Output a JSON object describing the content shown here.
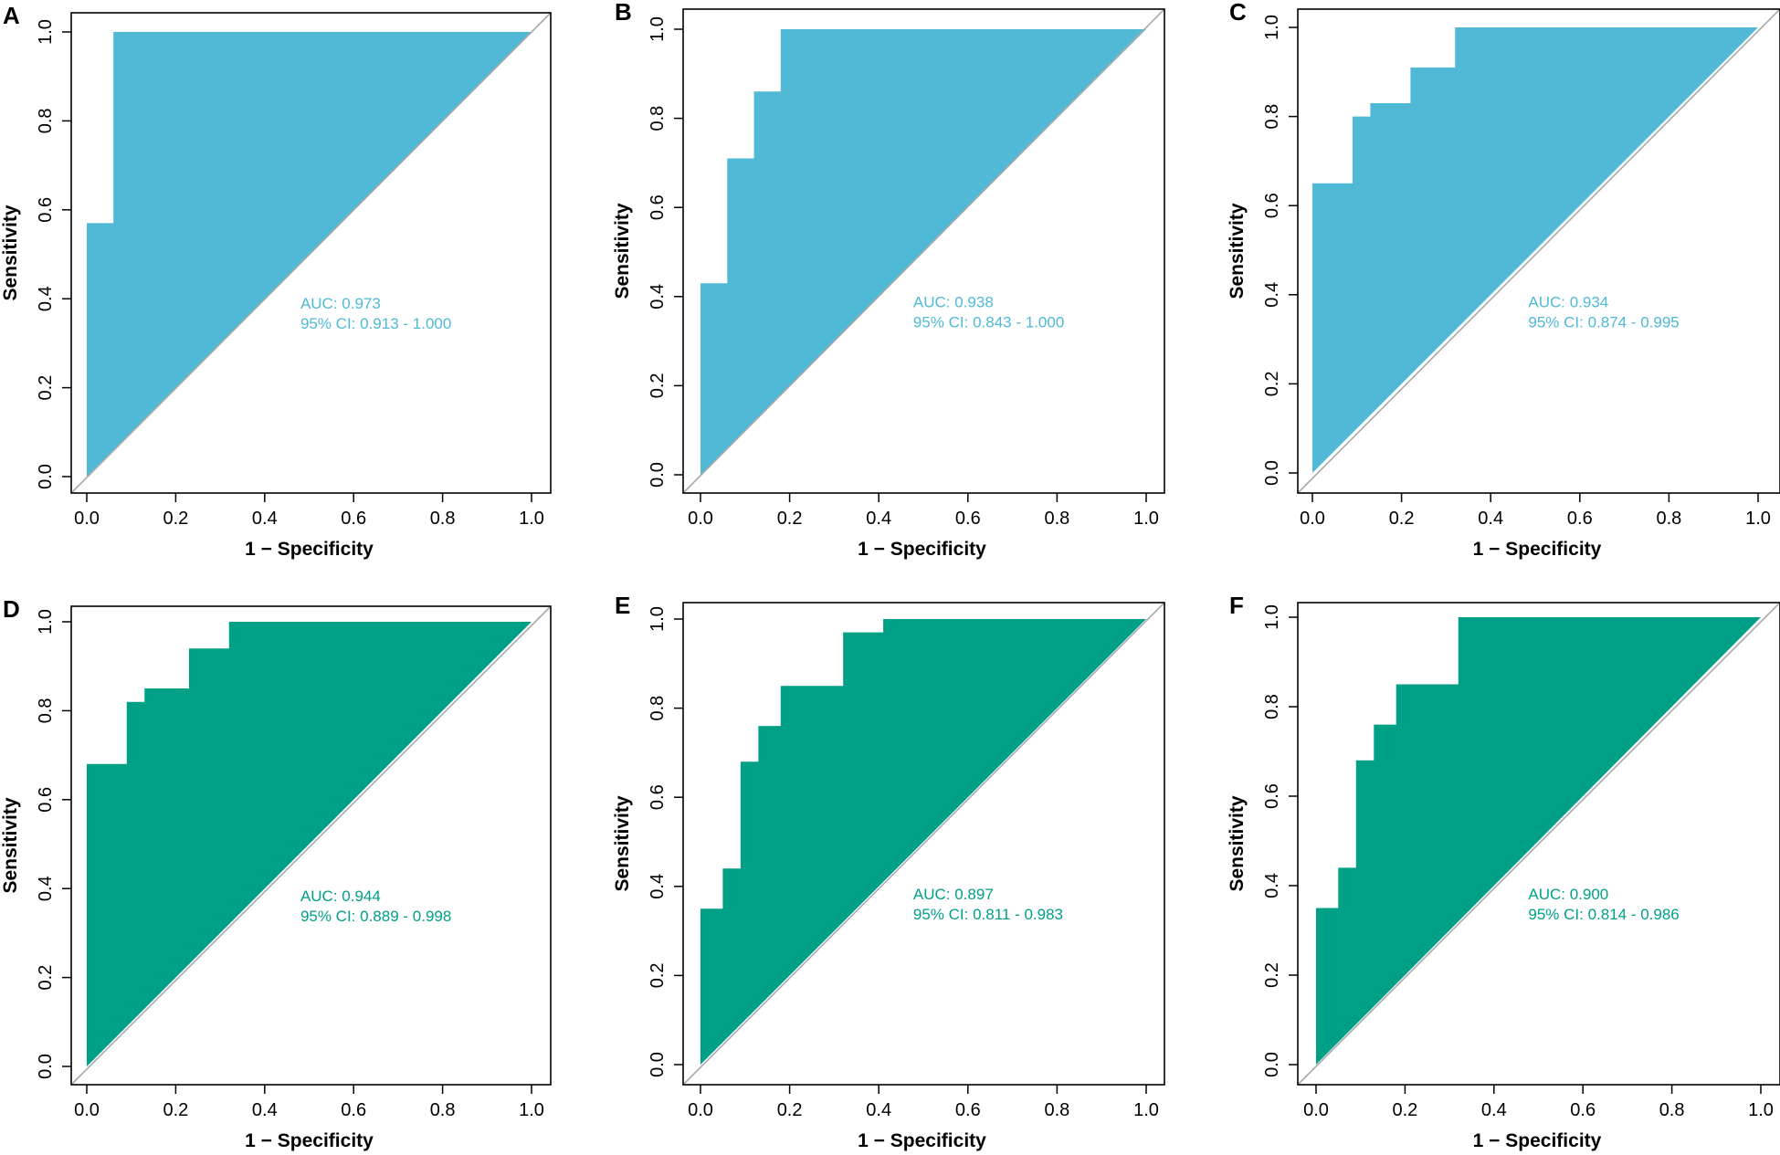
{
  "figure": {
    "width": 1949,
    "height": 1265
  },
  "chart_data": [
    {
      "type": "area",
      "panel": "A",
      "xlabel": "1 − Specificity",
      "ylabel": "Sensitivity",
      "xlim": [
        0,
        1
      ],
      "ylim": [
        0,
        1
      ],
      "xticks": [
        "0.0",
        "0.2",
        "0.4",
        "0.6",
        "0.8",
        "1.0"
      ],
      "yticks": [
        "0.0",
        "0.2",
        "0.4",
        "0.6",
        "0.8",
        "1.0"
      ],
      "color": "#4fb9d6",
      "auc_text": "AUC: 0.973",
      "ci_text": "95% CI: 0.913 - 1.000",
      "roc": [
        [
          0,
          0
        ],
        [
          0,
          0.57
        ],
        [
          0.06,
          0.57
        ],
        [
          0.06,
          1
        ],
        [
          1,
          1
        ]
      ]
    },
    {
      "type": "area",
      "panel": "B",
      "xlabel": "1 − Specificity",
      "ylabel": "Sensitivity",
      "xlim": [
        0,
        1
      ],
      "ylim": [
        0,
        1
      ],
      "xticks": [
        "0.0",
        "0.2",
        "0.4",
        "0.6",
        "0.8",
        "1.0"
      ],
      "yticks": [
        "0.0",
        "0.2",
        "0.4",
        "0.6",
        "0.8",
        "1.0"
      ],
      "color": "#4fb9d6",
      "auc_text": "AUC: 0.938",
      "ci_text": "95% CI: 0.843 - 1.000",
      "roc": [
        [
          0,
          0
        ],
        [
          0,
          0.43
        ],
        [
          0.06,
          0.43
        ],
        [
          0.06,
          0.71
        ],
        [
          0.12,
          0.71
        ],
        [
          0.12,
          0.86
        ],
        [
          0.18,
          0.86
        ],
        [
          0.18,
          1
        ],
        [
          1,
          1
        ]
      ]
    },
    {
      "type": "area",
      "panel": "C",
      "xlabel": "1 − Specificity",
      "ylabel": "Sensitivity",
      "xlim": [
        0,
        1
      ],
      "ylim": [
        0,
        1
      ],
      "xticks": [
        "0.0",
        "0.2",
        "0.4",
        "0.6",
        "0.8",
        "1.0"
      ],
      "yticks": [
        "0.0",
        "0.2",
        "0.4",
        "0.6",
        "0.8",
        "1.0"
      ],
      "color": "#4fb9d6",
      "auc_text": "AUC: 0.934",
      "ci_text": "95% CI: 0.874 - 0.995",
      "roc": [
        [
          0,
          0
        ],
        [
          0,
          0.65
        ],
        [
          0.09,
          0.65
        ],
        [
          0.09,
          0.8
        ],
        [
          0.13,
          0.8
        ],
        [
          0.13,
          0.83
        ],
        [
          0.22,
          0.83
        ],
        [
          0.22,
          0.91
        ],
        [
          0.32,
          0.91
        ],
        [
          0.32,
          1
        ],
        [
          1,
          1
        ]
      ]
    },
    {
      "type": "area",
      "panel": "D",
      "xlabel": "1 − Specificity",
      "ylabel": "Sensitivity",
      "xlim": [
        0,
        1
      ],
      "ylim": [
        0,
        1
      ],
      "xticks": [
        "0.0",
        "0.2",
        "0.4",
        "0.6",
        "0.8",
        "1.0"
      ],
      "yticks": [
        "0.0",
        "0.2",
        "0.4",
        "0.6",
        "0.8",
        "1.0"
      ],
      "color": "#00a087",
      "auc_text": "AUC: 0.944",
      "ci_text": "95% CI: 0.889 - 0.998",
      "roc": [
        [
          0,
          0
        ],
        [
          0,
          0.68
        ],
        [
          0.09,
          0.68
        ],
        [
          0.09,
          0.82
        ],
        [
          0.13,
          0.82
        ],
        [
          0.13,
          0.85
        ],
        [
          0.23,
          0.85
        ],
        [
          0.23,
          0.94
        ],
        [
          0.32,
          0.94
        ],
        [
          0.32,
          1
        ],
        [
          1,
          1
        ]
      ]
    },
    {
      "type": "area",
      "panel": "E",
      "xlabel": "1 − Specificity",
      "ylabel": "Sensitivity",
      "xlim": [
        0,
        1
      ],
      "ylim": [
        0,
        1
      ],
      "xticks": [
        "0.0",
        "0.2",
        "0.4",
        "0.6",
        "0.8",
        "1.0"
      ],
      "yticks": [
        "0.0",
        "0.2",
        "0.4",
        "0.6",
        "0.8",
        "1.0"
      ],
      "color": "#00a087",
      "auc_text": "AUC: 0.897",
      "ci_text": "95% CI: 0.811 - 0.983",
      "roc": [
        [
          0,
          0
        ],
        [
          0,
          0.35
        ],
        [
          0.05,
          0.35
        ],
        [
          0.05,
          0.44
        ],
        [
          0.09,
          0.44
        ],
        [
          0.09,
          0.68
        ],
        [
          0.13,
          0.68
        ],
        [
          0.13,
          0.76
        ],
        [
          0.18,
          0.76
        ],
        [
          0.18,
          0.85
        ],
        [
          0.32,
          0.85
        ],
        [
          0.32,
          0.97
        ],
        [
          0.41,
          0.97
        ],
        [
          0.41,
          1
        ],
        [
          1,
          1
        ]
      ]
    },
    {
      "type": "area",
      "panel": "F",
      "xlabel": "1 − Specificity",
      "ylabel": "Sensitivity",
      "xlim": [
        0,
        1
      ],
      "ylim": [
        0,
        1
      ],
      "xticks": [
        "0.0",
        "0.2",
        "0.4",
        "0.6",
        "0.8",
        "1.0"
      ],
      "yticks": [
        "0.0",
        "0.2",
        "0.4",
        "0.6",
        "0.8",
        "1.0"
      ],
      "color": "#00a087",
      "auc_text": "AUC: 0.900",
      "ci_text": "95% CI: 0.814 - 0.986",
      "roc": [
        [
          0,
          0
        ],
        [
          0,
          0.35
        ],
        [
          0.05,
          0.35
        ],
        [
          0.05,
          0.44
        ],
        [
          0.09,
          0.44
        ],
        [
          0.09,
          0.68
        ],
        [
          0.13,
          0.68
        ],
        [
          0.13,
          0.76
        ],
        [
          0.18,
          0.76
        ],
        [
          0.18,
          0.85
        ],
        [
          0.32,
          0.85
        ],
        [
          0.32,
          1
        ],
        [
          1,
          1
        ]
      ]
    }
  ]
}
